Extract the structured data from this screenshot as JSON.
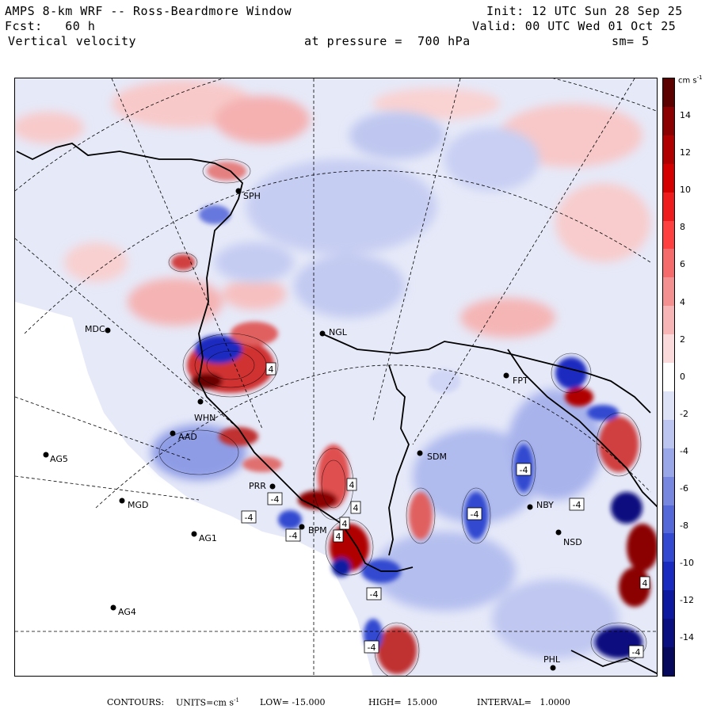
{
  "header": {
    "left_line1": "AMPS 8-km WRF -- Ross-Beardmore Window",
    "left_line2": "Fcst:   60 h",
    "left_line3": "Vertical velocity",
    "center_line3": "at pressure =  700 hPa",
    "right_line1": "Init: 12 UTC Sun 28 Sep 25",
    "right_line2": "Valid: 00 UTC Wed 01 Oct 25",
    "right_line3": "sm= 5"
  },
  "colorbar": {
    "unit": "cm s",
    "unit_sup": "-1",
    "ticks": [
      "14",
      "12",
      "10",
      "8",
      "6",
      "4",
      "2",
      "0",
      "-2",
      "-4",
      "-6",
      "-8",
      "-10",
      "-12",
      "-14"
    ],
    "colors_top_to_bottom": [
      "#5c0000",
      "#8b0000",
      "#b00000",
      "#d40000",
      "#ee1c1c",
      "#ff4040",
      "#f56b6b",
      "#f59090",
      "#f7b5b5",
      "#fadada",
      "#ffffff",
      "#dde2f7",
      "#bcc5f0",
      "#99a6e8",
      "#7787e0",
      "#5568d8",
      "#3349d0",
      "#1a2bc0",
      "#0d1aa0",
      "#0a1080",
      "#070a5c"
    ]
  },
  "footer": {
    "contours_label": "CONTOURS:",
    "units_label": "UNITS=cm s",
    "units_sup": "-1",
    "low": "LOW= -15.000",
    "high": "HIGH=  15.000",
    "interval": "INTERVAL=   1.0000"
  },
  "stations": [
    {
      "id": "MDC",
      "dot": [
        135,
        416
      ],
      "label": [
        106,
        414
      ]
    },
    {
      "id": "NGL",
      "dot": [
        406,
        420
      ],
      "label": [
        414,
        418
      ]
    },
    {
      "id": "SPH",
      "dot": [
        300,
        240
      ],
      "label": [
        306,
        246
      ]
    },
    {
      "id": "WHN",
      "dot": [
        252,
        506
      ],
      "label": [
        244,
        526
      ]
    },
    {
      "id": "AAD",
      "dot": [
        217,
        546
      ],
      "label": [
        224,
        550
      ]
    },
    {
      "id": "AG5",
      "dot": [
        57,
        573
      ],
      "label": [
        62,
        578
      ]
    },
    {
      "id": "MGD",
      "dot": [
        153,
        631
      ],
      "label": [
        160,
        636
      ]
    },
    {
      "id": "AG1",
      "dot": [
        244,
        673
      ],
      "label": [
        250,
        678
      ]
    },
    {
      "id": "AG4",
      "dot": [
        142,
        766
      ],
      "label": [
        148,
        771
      ]
    },
    {
      "id": "SDM",
      "dot": [
        529,
        571
      ],
      "label": [
        538,
        575
      ]
    },
    {
      "id": "FPT",
      "dot": [
        638,
        473
      ],
      "label": [
        646,
        479
      ]
    },
    {
      "id": "NBY",
      "dot": [
        668,
        639
      ],
      "label": [
        676,
        636
      ]
    },
    {
      "id": "NSD",
      "dot": [
        704,
        671
      ],
      "label": [
        710,
        683
      ]
    },
    {
      "id": "PHL",
      "dot": [
        697,
        842
      ],
      "label": [
        685,
        831
      ]
    },
    {
      "id": "BPM",
      "dot": [
        380,
        664
      ],
      "label": [
        388,
        668
      ]
    },
    {
      "id": "PRR",
      "dot": [
        343,
        613
      ],
      "label": [
        313,
        612
      ]
    }
  ],
  "contour_labels": [
    {
      "text": "4",
      "pos": [
        341,
        465
      ],
      "type": "pos"
    },
    {
      "text": "4",
      "pos": [
        443,
        611
      ],
      "type": "pos"
    },
    {
      "text": "4",
      "pos": [
        448,
        640
      ],
      "type": "pos"
    },
    {
      "text": "4",
      "pos": [
        434,
        660
      ],
      "type": "pos"
    },
    {
      "text": "4",
      "pos": [
        426,
        676
      ],
      "type": "pos"
    },
    {
      "text": "4",
      "pos": [
        813,
        735
      ],
      "type": "pos"
    },
    {
      "text": "-4",
      "pos": [
        313,
        652
      ],
      "type": "neg"
    },
    {
      "text": "-4",
      "pos": [
        346,
        629
      ],
      "type": "neg"
    },
    {
      "text": "-4",
      "pos": [
        369,
        675
      ],
      "type": "neg"
    },
    {
      "text": "-4",
      "pos": [
        471,
        749
      ],
      "type": "neg"
    },
    {
      "text": "-4",
      "pos": [
        598,
        648
      ],
      "type": "neg"
    },
    {
      "text": "-4",
      "pos": [
        660,
        592
      ],
      "type": "neg"
    },
    {
      "text": "-4",
      "pos": [
        727,
        636
      ],
      "type": "neg"
    },
    {
      "text": "-4",
      "pos": [
        468,
        816
      ],
      "type": "neg"
    },
    {
      "text": "-4",
      "pos": [
        802,
        822
      ],
      "type": "neg"
    }
  ]
}
